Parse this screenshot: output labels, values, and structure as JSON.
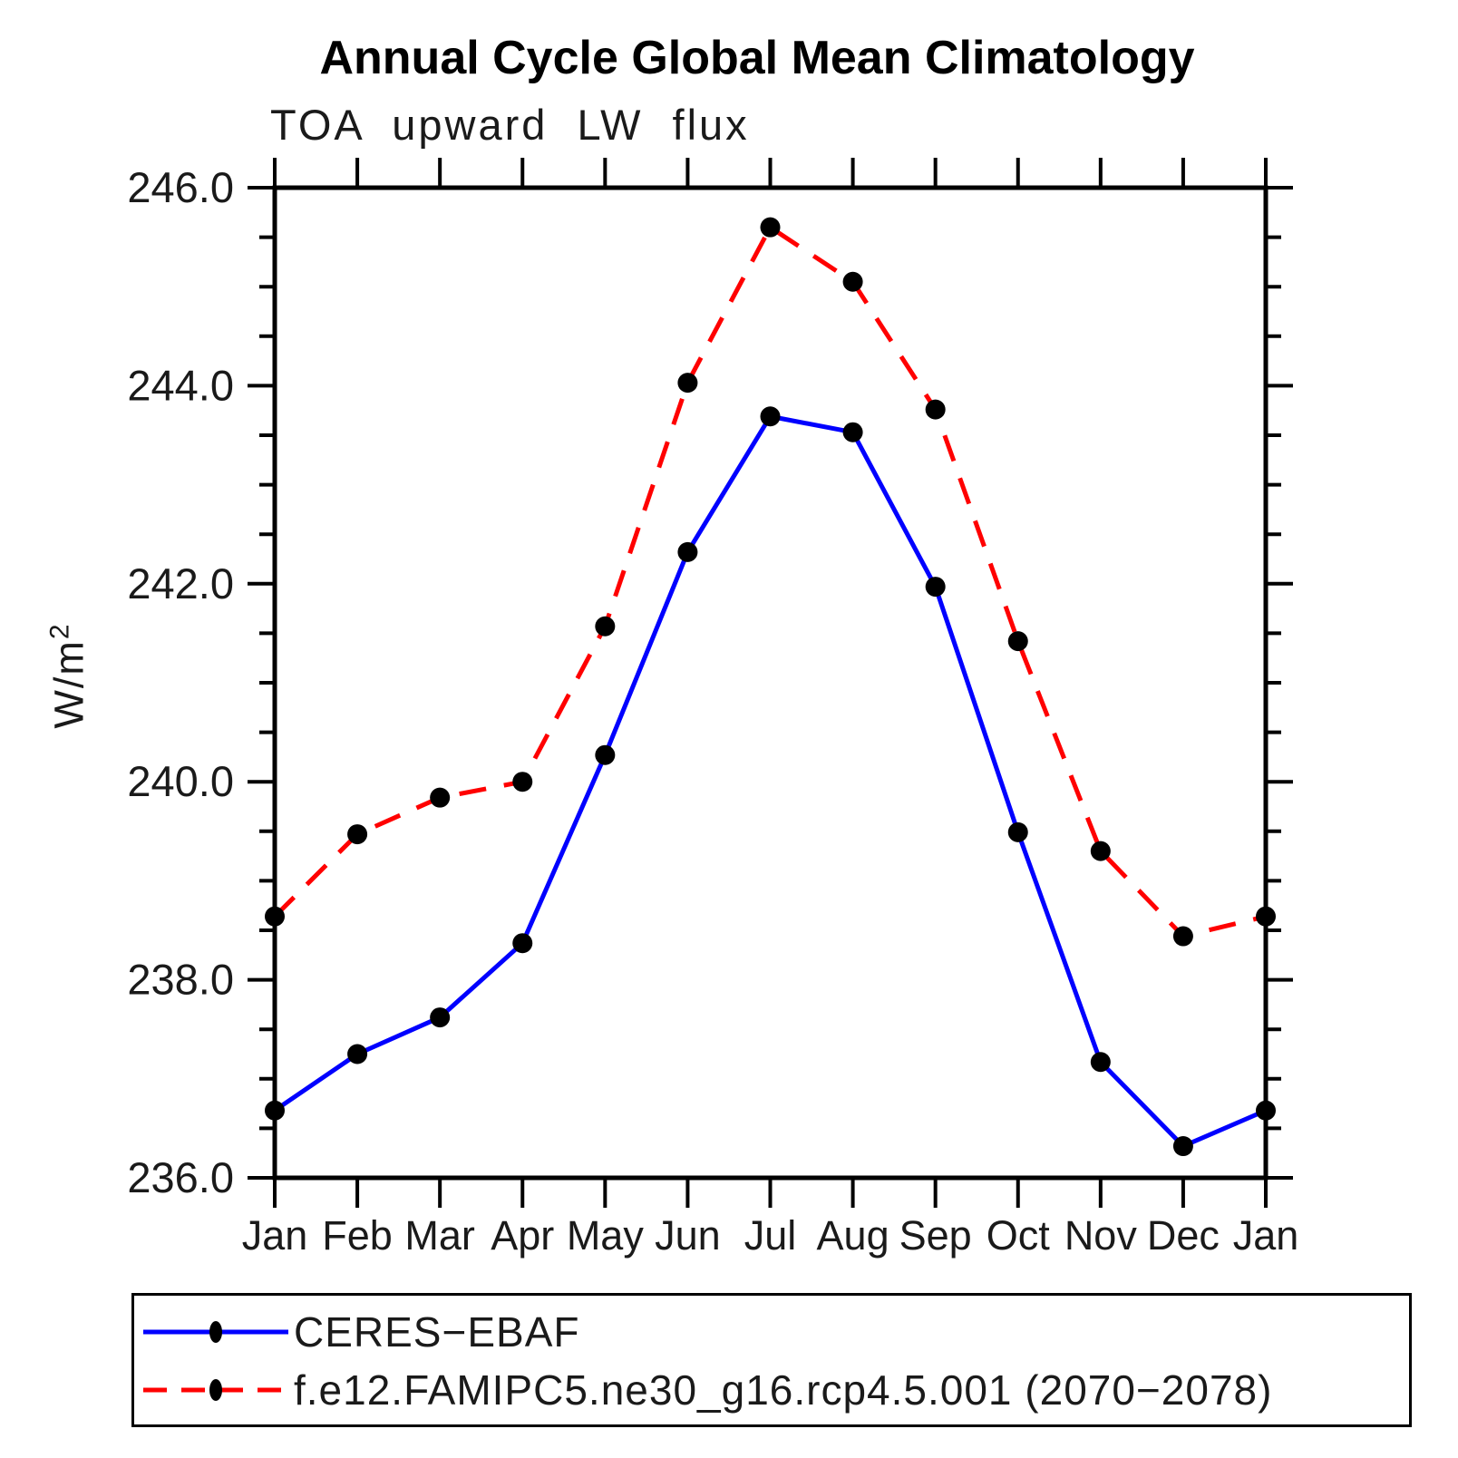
{
  "title": "Annual Cycle Global Mean Climatology",
  "chart_data": {
    "type": "line",
    "title": "Annual Cycle Global Mean Climatology",
    "subtitle": "TOA upward LW flux",
    "ylabel": {
      "text": "W/m",
      "superscript": "2"
    },
    "xlabel": "",
    "ylim": [
      236.0,
      246.0
    ],
    "y_major_step": 2.0,
    "y_minor_step": 0.5,
    "ytick_labels": [
      "236.0",
      "238.0",
      "240.0",
      "242.0",
      "244.0",
      "246.0"
    ],
    "grid": false,
    "legend_position": "bottom",
    "categories": [
      "Jan",
      "Feb",
      "Mar",
      "Apr",
      "May",
      "Jun",
      "Jul",
      "Aug",
      "Sep",
      "Oct",
      "Nov",
      "Dec",
      "Jan"
    ],
    "series": [
      {
        "name": "CERES−EBAF",
        "color": "#0000ff",
        "line_style": "solid",
        "marker": "circle",
        "marker_color": "#000000",
        "values": [
          236.68,
          237.25,
          237.62,
          238.37,
          240.27,
          242.32,
          243.69,
          243.53,
          241.97,
          239.49,
          237.17,
          236.32,
          236.68
        ]
      },
      {
        "name": "f.e12.FAMIPC5.ne30_g16.rcp4.5.001 (2070−2078)",
        "color": "#ff0000",
        "line_style": "dashed",
        "marker": "circle",
        "marker_color": "#000000",
        "values": [
          238.64,
          239.47,
          239.84,
          240.0,
          241.57,
          244.03,
          245.6,
          245.05,
          243.76,
          241.42,
          239.3,
          238.44,
          238.64
        ]
      }
    ],
    "axis_color": "#000000"
  }
}
